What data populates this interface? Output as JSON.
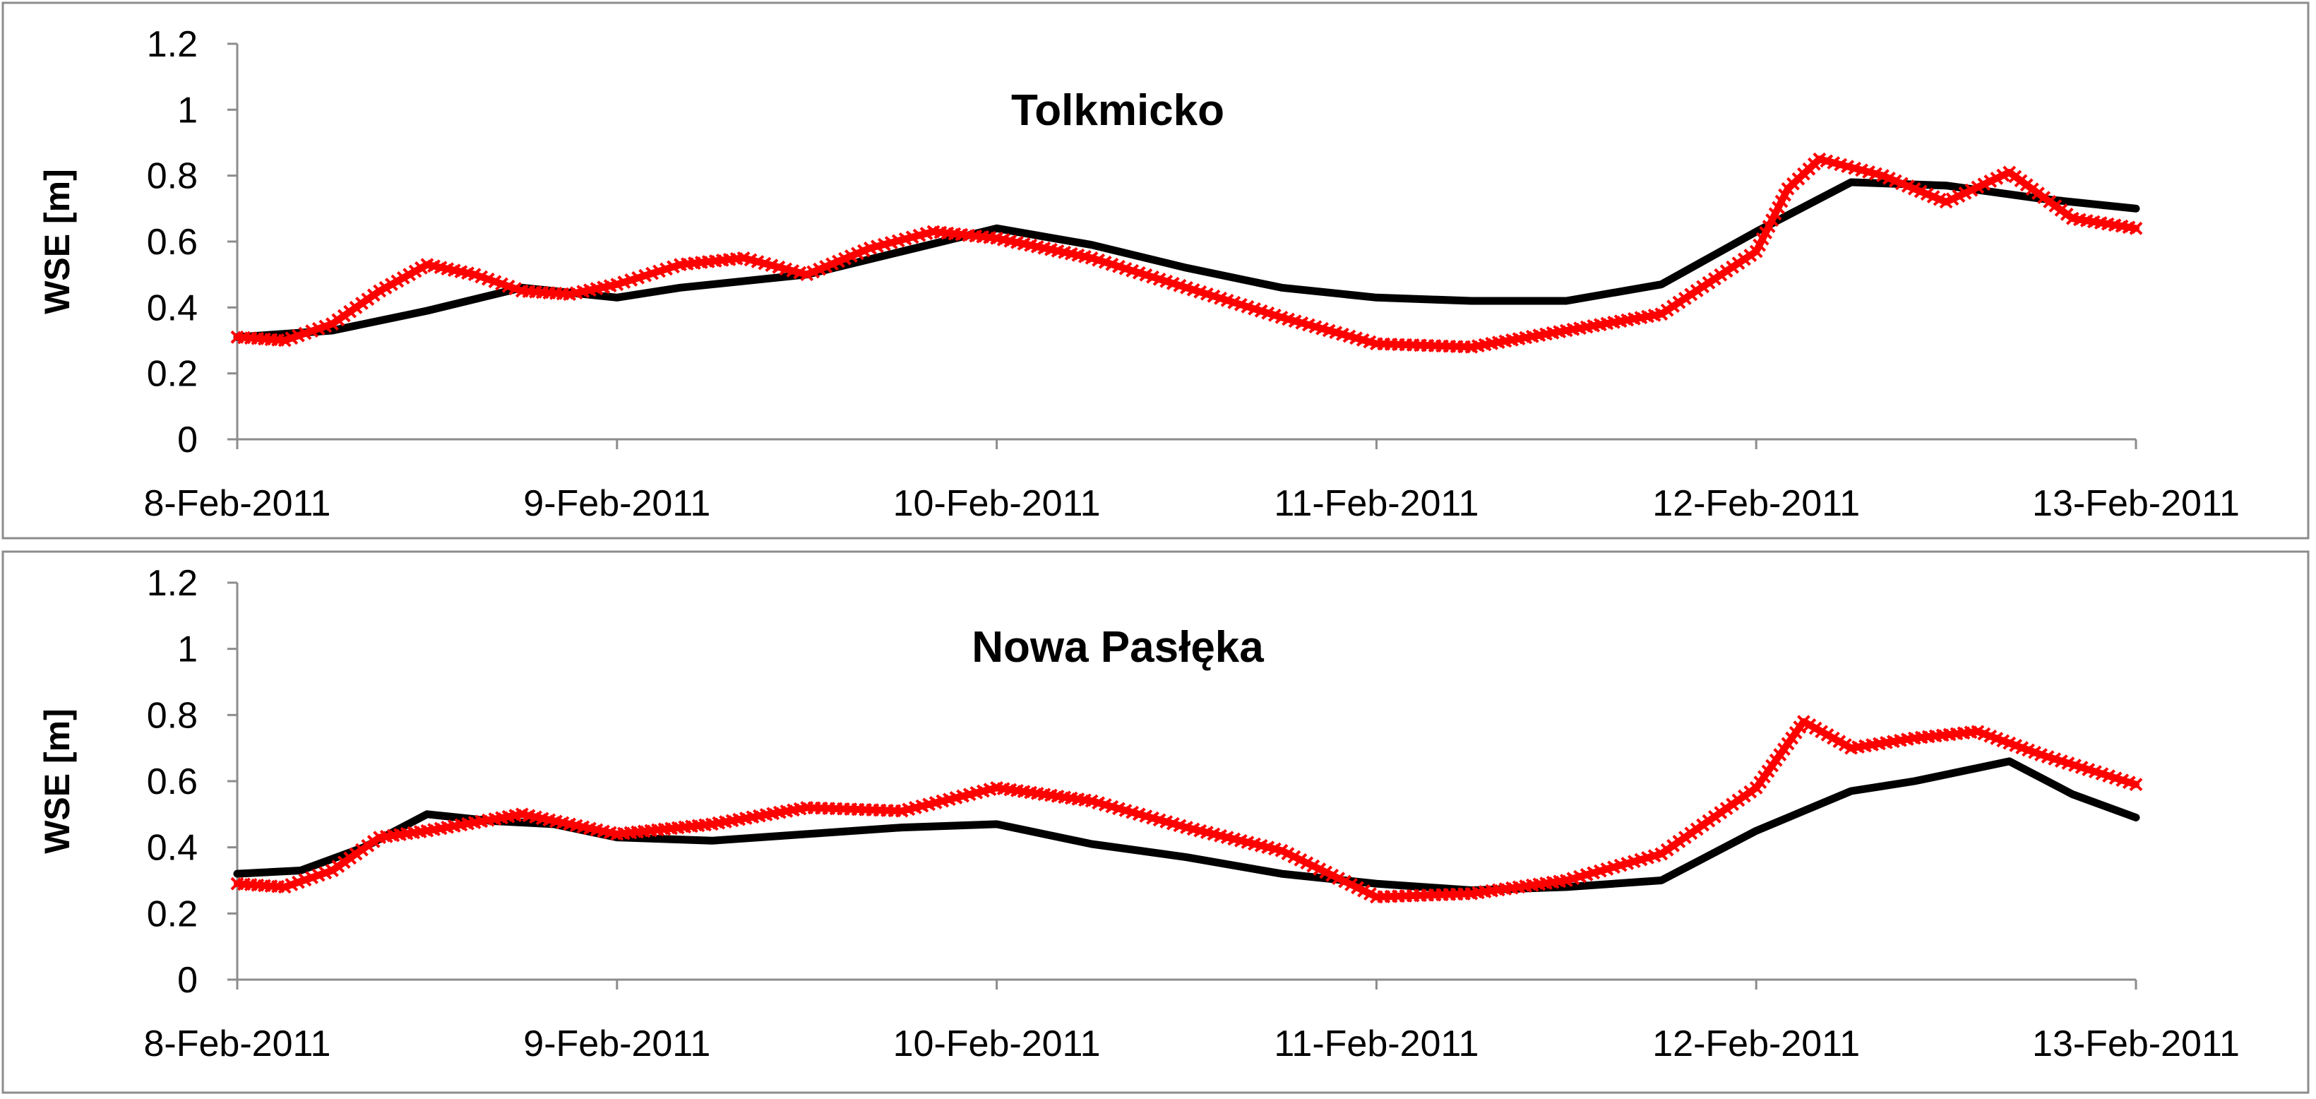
{
  "chart_data": [
    {
      "type": "line",
      "title": "Tolkmicko",
      "ylabel": "WSE [m]",
      "xlabel": "",
      "ylim": [
        0,
        1.2
      ],
      "y_ticks": [
        "0",
        "0.2",
        "0.4",
        "0.6",
        "0.8",
        "1",
        "1.2"
      ],
      "x_ticks": [
        "8-Feb-2011",
        "9-Feb-2011",
        "10-Feb-2011",
        "11-Feb-2011",
        "12-Feb-2011",
        "13-Feb-2011"
      ],
      "xlim": [
        "2011-02-08",
        "2011-02-13"
      ],
      "grid": false,
      "legend": "none",
      "series": [
        {
          "color": "#000000",
          "marker": "none",
          "x": [
            "2011-02-08T00:00",
            "2011-02-08T06:00",
            "2011-02-08T12:00",
            "2011-02-08T18:00",
            "2011-02-09T00:00",
            "2011-02-09T04:00",
            "2011-02-09T12:00",
            "2011-02-09T18:00",
            "2011-02-10T00:00",
            "2011-02-10T06:00",
            "2011-02-10T12:00",
            "2011-02-10T18:00",
            "2011-02-11T00:00",
            "2011-02-11T06:00",
            "2011-02-11T12:00",
            "2011-02-11T18:00",
            "2011-02-12T00:00",
            "2011-02-12T06:00",
            "2011-02-12T12:00",
            "2011-02-12T18:00",
            "2011-02-13T00:00"
          ],
          "values": [
            0.31,
            0.33,
            0.39,
            0.46,
            0.43,
            0.46,
            0.5,
            0.57,
            0.64,
            0.59,
            0.52,
            0.46,
            0.43,
            0.42,
            0.42,
            0.47,
            0.63,
            0.78,
            0.77,
            0.73,
            0.7
          ]
        },
        {
          "color": "#ff0000",
          "marker": "cross",
          "x": [
            "2011-02-08T00:00",
            "2011-02-08T03:00",
            "2011-02-08T06:00",
            "2011-02-08T09:00",
            "2011-02-08T12:00",
            "2011-02-08T15:00",
            "2011-02-08T18:00",
            "2011-02-08T21:00",
            "2011-02-09T00:00",
            "2011-02-09T04:00",
            "2011-02-09T08:00",
            "2011-02-09T12:00",
            "2011-02-09T16:00",
            "2011-02-09T20:00",
            "2011-02-10T00:00",
            "2011-02-10T06:00",
            "2011-02-10T12:00",
            "2011-02-10T18:00",
            "2011-02-11T00:00",
            "2011-02-11T06:00",
            "2011-02-11T12:00",
            "2011-02-11T18:00",
            "2011-02-12T00:00",
            "2011-02-12T02:00",
            "2011-02-12T04:00",
            "2011-02-12T08:00",
            "2011-02-12T12:00",
            "2011-02-12T16:00",
            "2011-02-12T20:00",
            "2011-02-13T00:00"
          ],
          "values": [
            0.31,
            0.3,
            0.35,
            0.45,
            0.53,
            0.5,
            0.45,
            0.44,
            0.47,
            0.53,
            0.55,
            0.5,
            0.58,
            0.63,
            0.61,
            0.55,
            0.46,
            0.37,
            0.29,
            0.28,
            0.33,
            0.38,
            0.57,
            0.76,
            0.85,
            0.8,
            0.72,
            0.81,
            0.67,
            0.64
          ]
        }
      ]
    },
    {
      "type": "line",
      "title": "Nowa Pasłęka",
      "ylabel": "WSE [m]",
      "xlabel": "",
      "ylim": [
        0,
        1.2
      ],
      "y_ticks": [
        "0",
        "0.2",
        "0.4",
        "0.6",
        "0.8",
        "1",
        "1.2"
      ],
      "x_ticks": [
        "8-Feb-2011",
        "9-Feb-2011",
        "10-Feb-2011",
        "11-Feb-2011",
        "12-Feb-2011",
        "13-Feb-2011"
      ],
      "xlim": [
        "2011-02-08",
        "2011-02-13"
      ],
      "grid": false,
      "legend": "none",
      "series": [
        {
          "color": "#000000",
          "marker": "none",
          "x": [
            "2011-02-08T00:00",
            "2011-02-08T04:00",
            "2011-02-08T08:00",
            "2011-02-08T12:00",
            "2011-02-08T16:00",
            "2011-02-08T20:00",
            "2011-02-09T00:00",
            "2011-02-09T06:00",
            "2011-02-09T12:00",
            "2011-02-09T18:00",
            "2011-02-10T00:00",
            "2011-02-10T06:00",
            "2011-02-10T12:00",
            "2011-02-10T18:00",
            "2011-02-11T00:00",
            "2011-02-11T06:00",
            "2011-02-11T12:00",
            "2011-02-11T18:00",
            "2011-02-12T00:00",
            "2011-02-12T06:00",
            "2011-02-12T10:00",
            "2011-02-12T16:00",
            "2011-02-12T20:00",
            "2011-02-13T00:00"
          ],
          "values": [
            0.32,
            0.33,
            0.4,
            0.5,
            0.48,
            0.47,
            0.43,
            0.42,
            0.44,
            0.46,
            0.47,
            0.41,
            0.37,
            0.32,
            0.29,
            0.27,
            0.28,
            0.3,
            0.45,
            0.57,
            0.6,
            0.66,
            0.56,
            0.49
          ]
        },
        {
          "color": "#ff0000",
          "marker": "cross",
          "x": [
            "2011-02-08T00:00",
            "2011-02-08T03:00",
            "2011-02-08T06:00",
            "2011-02-08T09:00",
            "2011-02-08T12:00",
            "2011-02-08T18:00",
            "2011-02-09T00:00",
            "2011-02-09T06:00",
            "2011-02-09T12:00",
            "2011-02-09T18:00",
            "2011-02-10T00:00",
            "2011-02-10T06:00",
            "2011-02-10T12:00",
            "2011-02-10T18:00",
            "2011-02-11T00:00",
            "2011-02-11T06:00",
            "2011-02-11T12:00",
            "2011-02-11T18:00",
            "2011-02-12T00:00",
            "2011-02-12T03:00",
            "2011-02-12T06:00",
            "2011-02-12T10:00",
            "2011-02-12T14:00",
            "2011-02-12T18:00",
            "2011-02-13T00:00"
          ],
          "values": [
            0.29,
            0.28,
            0.33,
            0.43,
            0.45,
            0.5,
            0.44,
            0.47,
            0.52,
            0.51,
            0.58,
            0.54,
            0.46,
            0.39,
            0.25,
            0.26,
            0.3,
            0.38,
            0.58,
            0.78,
            0.7,
            0.73,
            0.75,
            0.68,
            0.59
          ]
        }
      ]
    }
  ]
}
